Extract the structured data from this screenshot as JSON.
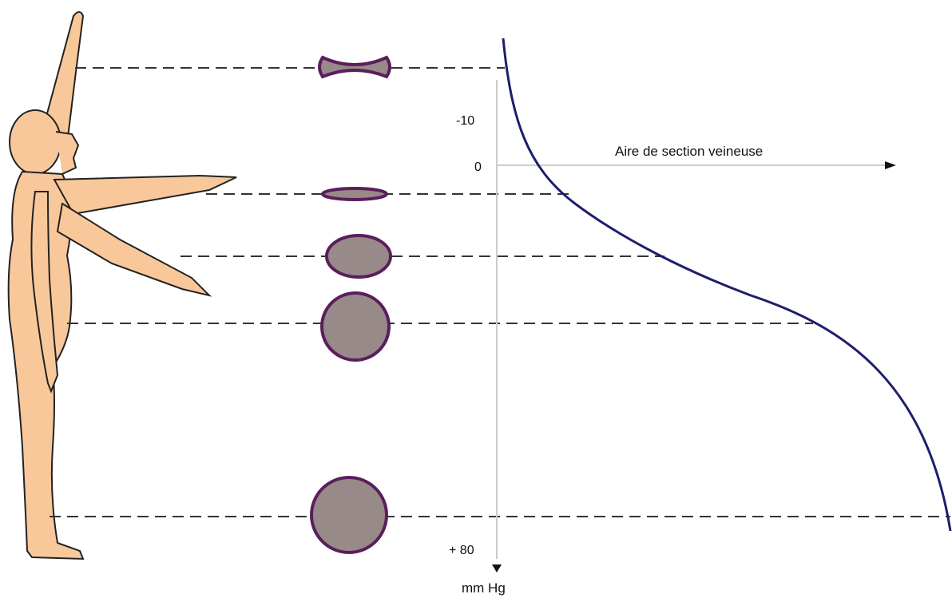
{
  "diagram": {
    "x_axis_label": "Aire de section veineuse",
    "y_axis_unit": "mm Hg",
    "y_ticks": [
      {
        "label": "-10"
      },
      {
        "label": "0"
      },
      {
        "label": "+ 80"
      }
    ],
    "vein_cross_sections": [
      {
        "shape": "collapsed"
      },
      {
        "shape": "flattened-ellipse"
      },
      {
        "shape": "ellipse"
      },
      {
        "shape": "circle"
      },
      {
        "shape": "large-circle"
      }
    ],
    "colors": {
      "skin": "#f8c89a",
      "vein_fill": "#978a88",
      "vein_outline": "#5a1e5c",
      "curve": "#1e1e6e",
      "dashes": "#333333",
      "axis": "#cccccc"
    }
  }
}
